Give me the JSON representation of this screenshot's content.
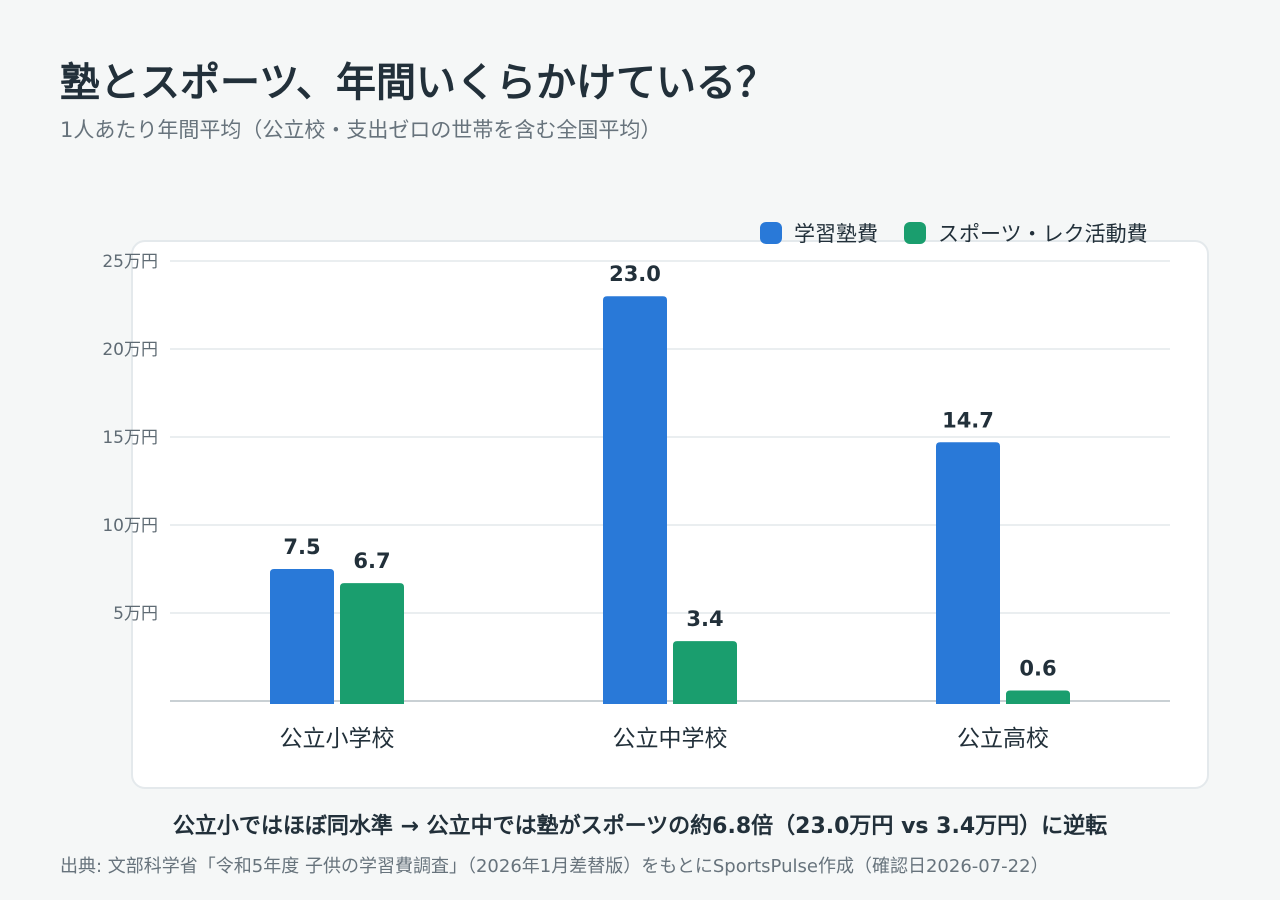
{
  "title": "塾とスポーツ、年間いくらかけている？",
  "subtitle": "1人あたり年間平均（公立校・支出ゼロの世帯を含む全国平均）",
  "legend": {
    "items": [
      {
        "label": "学習塾費",
        "color": "#2979d8"
      },
      {
        "label": "スポーツ・レク活動費",
        "color": "#1a9e6e"
      }
    ]
  },
  "chart_data": {
    "type": "bar",
    "categories": [
      "公立小学校",
      "公立中学校",
      "公立高校"
    ],
    "series": [
      {
        "name": "学習塾費",
        "values": [
          7.5,
          23.0,
          14.7
        ],
        "color": "#2979d8"
      },
      {
        "name": "スポーツ・レク活動費",
        "values": [
          6.7,
          3.4,
          0.6
        ],
        "color": "#1a9e6e"
      }
    ],
    "value_labels": [
      [
        "7.5",
        "23.0",
        "14.7"
      ],
      [
        "6.7",
        "3.4",
        "0.6"
      ]
    ],
    "yticks": [
      5,
      10,
      15,
      20,
      25
    ],
    "ytick_labels": [
      "5万円",
      "10万円",
      "15万円",
      "20万円",
      "25万円"
    ],
    "ylim": [
      0,
      25
    ],
    "grid": true,
    "legend_position": "top-right"
  },
  "insight": "公立小ではほぼ同水準 → 公立中では塾がスポーツの約6.8倍（23.0万円 vs 3.4万円）に逆転",
  "source": "出典: 文部科学省「令和5年度 子供の学習費調査」（2026年1月差替版）をもとにSportsPulse作成（確認日2026-07-22）"
}
